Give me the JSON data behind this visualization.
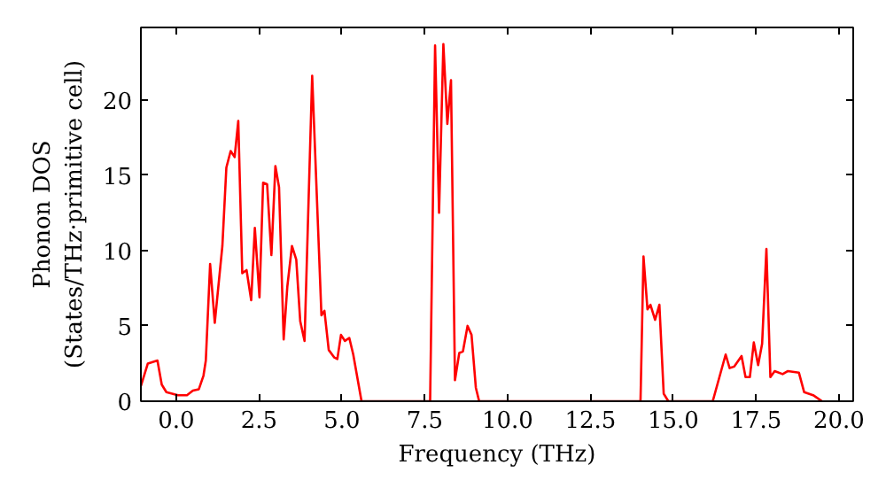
{
  "chart_data": {
    "type": "line",
    "xlabel": "Frequency (THz)",
    "ylabel": "Phonon DOS\n(States/THz·primitive cell)",
    "xlim": [
      -1.07,
      20.43
    ],
    "ylim": [
      0,
      24.8
    ],
    "xticks": [
      {
        "value": 0,
        "label": "0.0"
      },
      {
        "value": 2.5,
        "label": "2.5"
      },
      {
        "value": 5,
        "label": "5.0"
      },
      {
        "value": 7.5,
        "label": "7.5"
      },
      {
        "value": 10,
        "label": "10.0"
      },
      {
        "value": 12.5,
        "label": "12.5"
      },
      {
        "value": 15,
        "label": "15.0"
      },
      {
        "value": 17.5,
        "label": "17.5"
      },
      {
        "value": 20,
        "label": "20.0"
      }
    ],
    "yticks": [
      0,
      5,
      10,
      15,
      20
    ],
    "grid": false,
    "marker": "none",
    "line_style": "solid",
    "series": [
      {
        "color": "#ff0000",
        "x": [
          -1.07,
          -0.86,
          -0.57,
          -0.44,
          -0.3,
          0.05,
          0.32,
          0.5,
          0.68,
          0.82,
          0.89,
          1.02,
          1.16,
          1.39,
          1.51,
          1.64,
          1.76,
          1.87,
          1.99,
          2.12,
          2.26,
          2.37,
          2.51,
          2.62,
          2.74,
          2.87,
          2.99,
          3.1,
          3.24,
          3.35,
          3.49,
          3.62,
          3.74,
          3.87,
          4.1,
          4.38,
          4.47,
          4.6,
          4.77,
          4.86,
          4.97,
          5.09,
          5.22,
          5.34,
          5.59,
          7.66,
          7.81,
          7.93,
          8.06,
          8.18,
          8.29,
          8.41,
          8.54,
          8.65,
          8.79,
          8.91,
          9.04,
          9.14,
          14.01,
          14.1,
          14.22,
          14.31,
          14.45,
          14.58,
          14.71,
          14.85,
          16.19,
          16.58,
          16.7,
          16.84,
          17.06,
          17.18,
          17.31,
          17.43,
          17.56,
          17.68,
          17.81,
          17.93,
          18.06,
          18.3,
          18.46,
          18.79,
          18.95,
          19.22,
          19.49
        ],
        "values": [
          1.0,
          2.5,
          2.7,
          1.1,
          0.6,
          0.4,
          0.4,
          0.7,
          0.8,
          1.7,
          2.7,
          9.1,
          5.2,
          10.3,
          15.5,
          16.6,
          16.2,
          18.6,
          8.5,
          8.7,
          6.7,
          11.5,
          6.9,
          14.5,
          14.4,
          9.7,
          15.6,
          14.2,
          4.1,
          7.6,
          10.3,
          9.4,
          5.3,
          4.0,
          21.6,
          5.7,
          6.0,
          3.4,
          2.9,
          2.8,
          4.4,
          4.0,
          4.2,
          3.1,
          0,
          0,
          23.6,
          12.5,
          23.7,
          18.4,
          21.3,
          1.4,
          3.2,
          3.3,
          5.0,
          4.4,
          0.9,
          0,
          0,
          9.6,
          6.1,
          6.4,
          5.4,
          6.4,
          0.5,
          0,
          0,
          3.1,
          2.2,
          2.3,
          3.0,
          1.6,
          1.6,
          3.9,
          2.4,
          3.8,
          10.1,
          1.6,
          2.0,
          1.8,
          2.0,
          1.9,
          0.6,
          0.4,
          0
        ]
      }
    ]
  }
}
